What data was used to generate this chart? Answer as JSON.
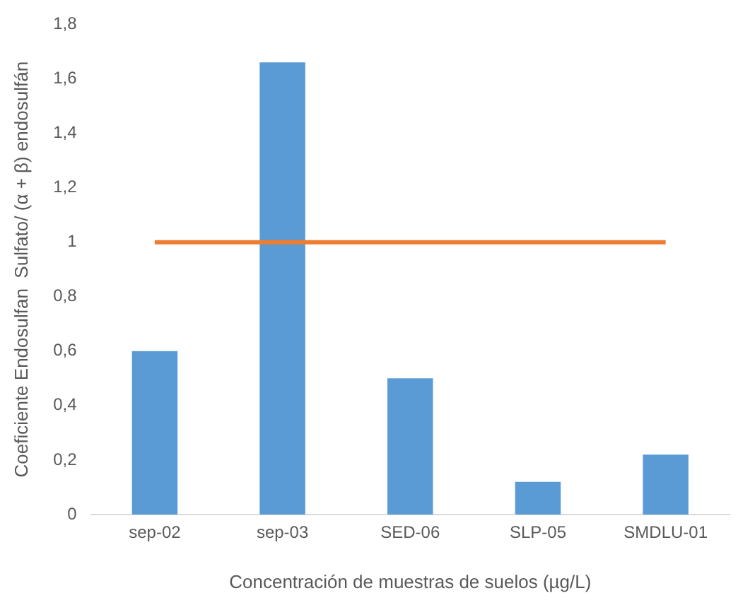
{
  "chart_data": {
    "type": "bar",
    "xlabel": "Concentración de muestras de suelos (µg/L)",
    "ylabel": "Coeficiente Endosulfan  Sulfato/ (α + β) endosulfán",
    "categories": [
      "sep-02",
      "sep-03",
      "SED-06",
      "SLP-05",
      "SMDLU-01"
    ],
    "series": [
      {
        "color": "#5b9bd5",
        "values": [
          0.6,
          1.66,
          0.5,
          0.12,
          0.22
        ]
      },
      {
        "type": "line",
        "color": "#ed7d31",
        "values": [
          1,
          1,
          1,
          1,
          1
        ]
      }
    ],
    "ylim": [
      0,
      1.8
    ],
    "yticks": [
      0,
      {
        "value": 0.2,
        "label": "0,2"
      },
      {
        "value": 0.4,
        "label": "0,4"
      },
      {
        "value": 0.6,
        "label": "0,6"
      },
      {
        "value": 0.8,
        "label": "0,8"
      },
      1,
      {
        "value": 1.2,
        "label": "1,2"
      },
      {
        "value": 1.4,
        "label": "1,4"
      },
      {
        "value": 1.6,
        "label": "1,6"
      },
      {
        "value": 1.8,
        "label": "1,8"
      }
    ],
    "grid": false,
    "legend": false,
    "marker": "none"
  }
}
